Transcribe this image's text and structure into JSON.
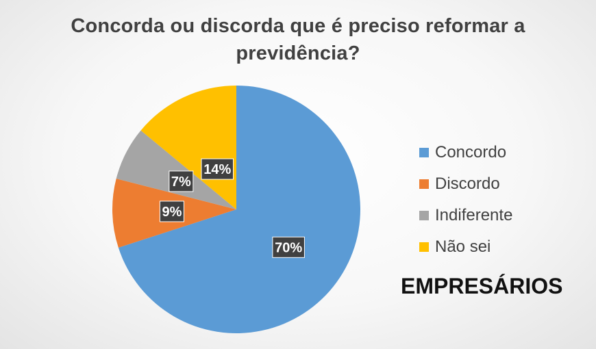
{
  "chart_data": {
    "type": "pie",
    "title": "Concorda ou discorda que é preciso reformar a previdência?",
    "slices": [
      {
        "label": "Concordo",
        "value": 70,
        "display": "70%",
        "color": "#5B9BD5"
      },
      {
        "label": "Discordo",
        "value": 9,
        "display": "9%",
        "color": "#ED7D31"
      },
      {
        "label": "Indiferente",
        "value": 7,
        "display": "7%",
        "color": "#A5A5A5"
      },
      {
        "label": "Não sei",
        "value": 14,
        "display": "14%",
        "color": "#FFC000"
      }
    ],
    "legend_position": "right",
    "caption": "EMPRESÁRIOS"
  }
}
